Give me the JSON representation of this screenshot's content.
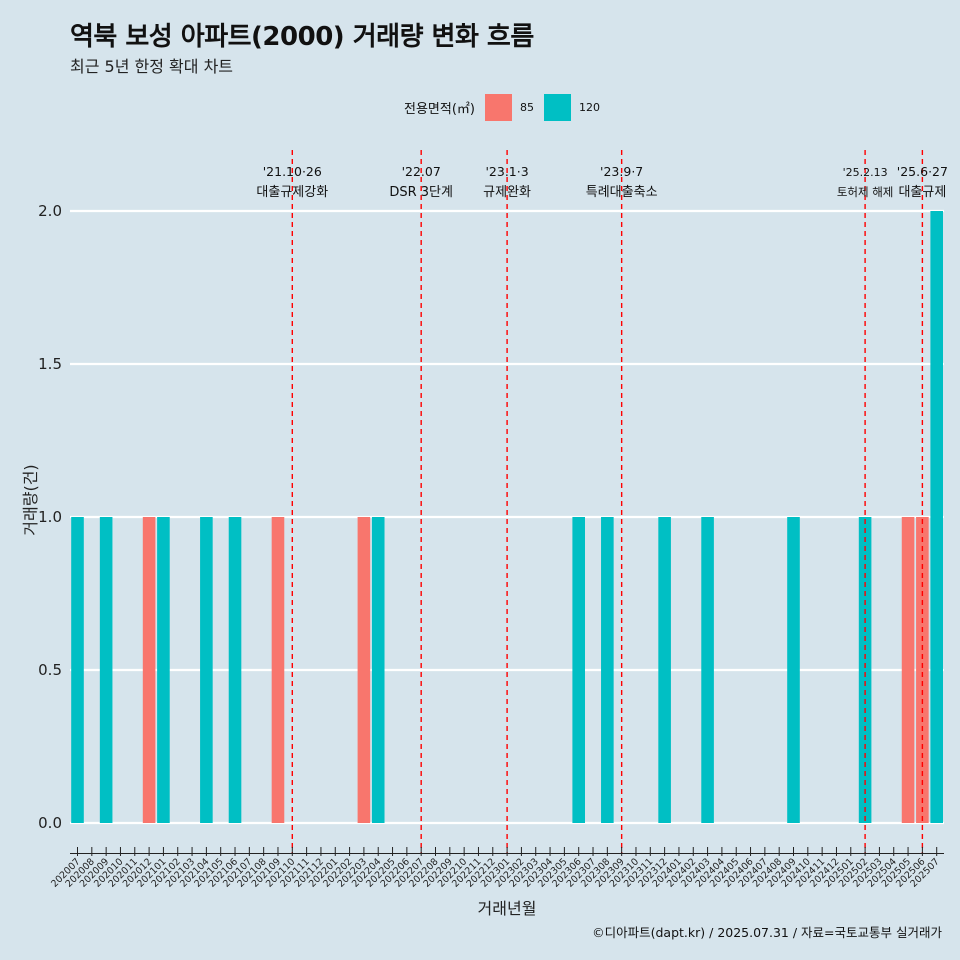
{
  "title": "역북 보성 아파트(2000) 거래량 변화 흐름",
  "subtitle": "최근 5년 한정 확대 차트",
  "legend": {
    "title": "전용면적(㎡)",
    "items": [
      {
        "label": "85",
        "color": "#f8766d"
      },
      {
        "label": "120",
        "color": "#00bfc4"
      }
    ]
  },
  "caption": "©디아파트(dapt.kr) / 2025.07.31 / 자료=국토교통부 실거래가",
  "chart_data": {
    "type": "bar",
    "xlabel": "거래년월",
    "ylabel": "거래량(건)",
    "ylim": [
      0,
      2
    ],
    "yticks": [
      0.0,
      0.5,
      1.0,
      1.5,
      2.0
    ],
    "ytick_labels": [
      "0.0",
      "0.5",
      "1.0",
      "1.5",
      "2.0"
    ],
    "categories": [
      "202007",
      "202008",
      "202009",
      "202010",
      "202011",
      "202012",
      "202101",
      "202102",
      "202103",
      "202104",
      "202105",
      "202106",
      "202107",
      "202108",
      "202109",
      "202110",
      "202111",
      "202112",
      "202201",
      "202202",
      "202203",
      "202204",
      "202205",
      "202206",
      "202207",
      "202208",
      "202209",
      "202210",
      "202211",
      "202212",
      "202301",
      "202302",
      "202303",
      "202304",
      "202305",
      "202306",
      "202307",
      "202308",
      "202309",
      "202310",
      "202311",
      "202312",
      "202401",
      "202402",
      "202403",
      "202404",
      "202405",
      "202406",
      "202407",
      "202408",
      "202409",
      "202410",
      "202411",
      "202412",
      "202501",
      "202502",
      "202503",
      "202504",
      "202505",
      "202506",
      "202507"
    ],
    "series": [
      {
        "name": "85",
        "color": "#f8766d",
        "values": [
          0,
          0,
          0,
          0,
          0,
          1,
          0,
          0,
          0,
          0,
          0,
          0,
          0,
          0,
          1,
          0,
          0,
          0,
          0,
          0,
          1,
          0,
          0,
          0,
          0,
          0,
          0,
          0,
          0,
          0,
          0,
          0,
          0,
          0,
          0,
          0,
          0,
          0,
          0,
          0,
          0,
          0,
          0,
          0,
          0,
          0,
          0,
          0,
          0,
          0,
          0,
          0,
          0,
          0,
          0,
          0,
          0,
          0,
          1,
          1,
          0
        ]
      },
      {
        "name": "120",
        "color": "#00bfc4",
        "values": [
          1,
          0,
          1,
          0,
          0,
          0,
          1,
          0,
          0,
          1,
          0,
          1,
          0,
          0,
          0,
          0,
          0,
          0,
          0,
          0,
          0,
          1,
          0,
          0,
          0,
          0,
          0,
          0,
          0,
          0,
          0,
          0,
          0,
          0,
          0,
          1,
          0,
          1,
          0,
          0,
          0,
          1,
          0,
          0,
          1,
          0,
          0,
          0,
          0,
          0,
          1,
          0,
          0,
          0,
          0,
          1,
          0,
          0,
          0,
          0,
          2
        ]
      }
    ],
    "events": [
      {
        "x": "202110",
        "date": "'21.10·26",
        "label": "대출규제강화"
      },
      {
        "x": "202207",
        "date": "'22.07",
        "label": "DSR 3단계"
      },
      {
        "x": "202301",
        "date": "'23.1·3",
        "label": "규제완화"
      },
      {
        "x": "202309",
        "date": "'23.9·7",
        "label": "특례대출축소"
      },
      {
        "x": "202502",
        "date": "'25.2.13",
        "label": "토허제 해제"
      },
      {
        "x": "202506",
        "date": "'25.6·27",
        "label": "대출규제"
      }
    ]
  }
}
